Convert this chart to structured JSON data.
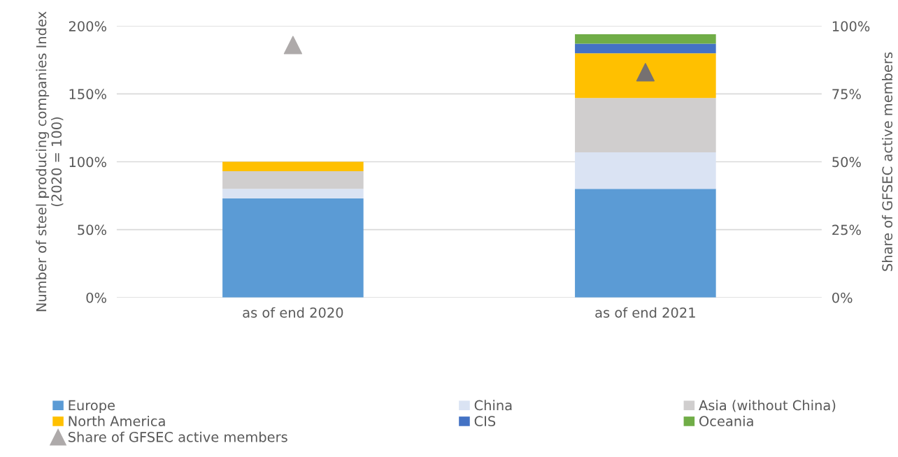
{
  "chart_data": {
    "type": "bar",
    "stacked": true,
    "ylabel": "Number of steel producing companies Index\n(2020 = 100)",
    "y2label": "Share of GFSEC active members",
    "categories": [
      "as of end 2020",
      "as of end 2021"
    ],
    "series": [
      {
        "name": "Europe",
        "color": "#5b9bd5",
        "values": [
          73,
          80
        ]
      },
      {
        "name": "China",
        "color": "#dae3f3",
        "values": [
          7,
          27
        ]
      },
      {
        "name": "Asia (without China)",
        "color": "#d0cece",
        "values": [
          13,
          40
        ]
      },
      {
        "name": "North America",
        "color": "#ffc000",
        "values": [
          7,
          33
        ]
      },
      {
        "name": "CIS",
        "color": "#4472c4",
        "values": [
          0,
          7
        ]
      },
      {
        "name": "Oceania",
        "color": "#70ad47",
        "values": [
          0,
          7
        ]
      },
      {
        "name": "Share of GFSEC active members",
        "type": "scatter",
        "axis": "y2",
        "marker": "triangle",
        "color": "#aeaaaa",
        "colors": [
          "#aeaaaa",
          "#767171"
        ],
        "values": [
          93,
          83
        ]
      }
    ],
    "ylim": [
      0,
      200
    ],
    "yticks": [
      {
        "value": 0,
        "label": "0%"
      },
      {
        "value": 50,
        "label": "50%"
      },
      {
        "value": 100,
        "label": "100%"
      },
      {
        "value": 150,
        "label": "150%"
      },
      {
        "value": 200,
        "label": "200%"
      }
    ],
    "y2lim": [
      0,
      100
    ],
    "y2ticks": [
      {
        "value": 0,
        "label": "0%"
      },
      {
        "value": 25,
        "label": "25%"
      },
      {
        "value": 50,
        "label": "50%"
      },
      {
        "value": 75,
        "label": "75%"
      },
      {
        "value": 100,
        "label": "100%"
      }
    ],
    "grid": "y",
    "legend": "bottom"
  }
}
